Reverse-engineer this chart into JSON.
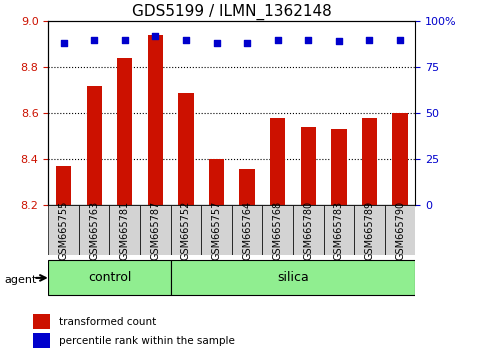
{
  "title": "GDS5199 / ILMN_1362148",
  "samples": [
    "GSM665755",
    "GSM665763",
    "GSM665781",
    "GSM665787",
    "GSM665752",
    "GSM665757",
    "GSM665764",
    "GSM665768",
    "GSM665780",
    "GSM665783",
    "GSM665789",
    "GSM665790"
  ],
  "bar_values": [
    8.37,
    8.72,
    8.84,
    8.94,
    8.69,
    8.4,
    8.36,
    8.58,
    8.54,
    8.53,
    8.58,
    8.6
  ],
  "percentile_values": [
    88,
    90,
    90,
    92,
    90,
    88,
    88,
    90,
    90,
    89,
    90,
    90
  ],
  "bar_color": "#cc1100",
  "dot_color": "#0000cc",
  "ylim": [
    8.2,
    9.0
  ],
  "yticks": [
    8.2,
    8.4,
    8.6,
    8.8,
    9.0
  ],
  "right_yticks": [
    0,
    25,
    50,
    75,
    100
  ],
  "right_ylim": [
    0,
    100
  ],
  "grid_values": [
    8.4,
    8.6,
    8.8
  ],
  "control_samples": [
    "GSM665755",
    "GSM665763",
    "GSM665781",
    "GSM665787"
  ],
  "silica_samples": [
    "GSM665752",
    "GSM665757",
    "GSM665764",
    "GSM665768",
    "GSM665780",
    "GSM665783",
    "GSM665789",
    "GSM665790"
  ],
  "control_color": "#90ee90",
  "silica_color": "#90ee90",
  "agent_label": "agent",
  "control_label": "control",
  "silica_label": "silica",
  "legend_bar_label": "transformed count",
  "legend_dot_label": "percentile rank within the sample",
  "background_color": "#d3d3d3",
  "plot_bg_color": "#ffffff"
}
